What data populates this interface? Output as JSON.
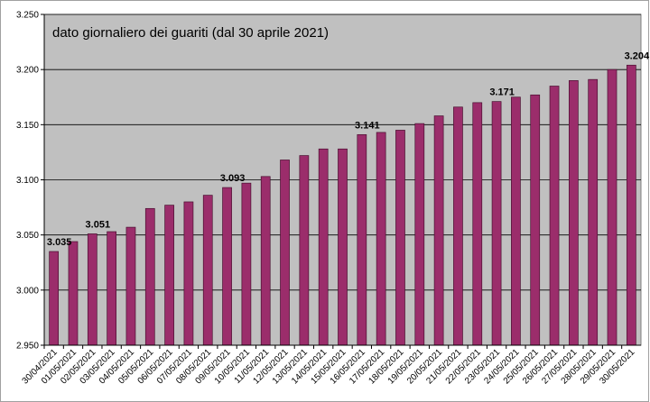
{
  "chart_data": {
    "type": "bar",
    "title": "dato giornaliero dei guariti (dal 30 aprile 2021)",
    "xlabel": "",
    "ylabel": "",
    "ylim": [
      2950,
      3250
    ],
    "yticks": [
      2950,
      3000,
      3050,
      3100,
      3150,
      3200,
      3250
    ],
    "ytick_labels": [
      "2.950",
      "3.000",
      "3.050",
      "3.100",
      "3.150",
      "3.200",
      "3.250"
    ],
    "grid": true,
    "legend": "none",
    "categories": [
      "30/04/2021",
      "01/05/2021",
      "02/05/2021",
      "03/05/2021",
      "04/05/2021",
      "05/05/2021",
      "06/05/2021",
      "07/05/2021",
      "08/05/2021",
      "09/05/2021",
      "10/05/2021",
      "11/05/2021",
      "12/05/2021",
      "13/05/2021",
      "14/05/2021",
      "15/05/2021",
      "16/05/2021",
      "17/05/2021",
      "18/05/2021",
      "19/05/2021",
      "20/05/2021",
      "21/05/2021",
      "22/05/2021",
      "23/05/2021",
      "24/05/2021",
      "25/05/2021",
      "26/05/2021",
      "27/05/2021",
      "28/05/2021",
      "29/05/2021",
      "30/05/2021"
    ],
    "values": [
      3035,
      3044,
      3051,
      3053,
      3057,
      3074,
      3077,
      3080,
      3086,
      3093,
      3097,
      3103,
      3118,
      3122,
      3128,
      3128,
      3141,
      3143,
      3145,
      3151,
      3158,
      3166,
      3170,
      3171,
      3175,
      3177,
      3185,
      3190,
      3191,
      3200,
      3204
    ],
    "data_labels": [
      {
        "index": 0,
        "text": "3.035"
      },
      {
        "index": 2,
        "text": "3.051"
      },
      {
        "index": 9,
        "text": "3.093"
      },
      {
        "index": 16,
        "text": "3.141"
      },
      {
        "index": 23,
        "text": "3.171"
      },
      {
        "index": 30,
        "text": "3.204"
      }
    ],
    "colors": {
      "bar_fill": "#9b2d6b",
      "bar_stroke": "#4a0f30",
      "plot_background": "#c0c0c0",
      "gridline": "#000000"
    }
  }
}
